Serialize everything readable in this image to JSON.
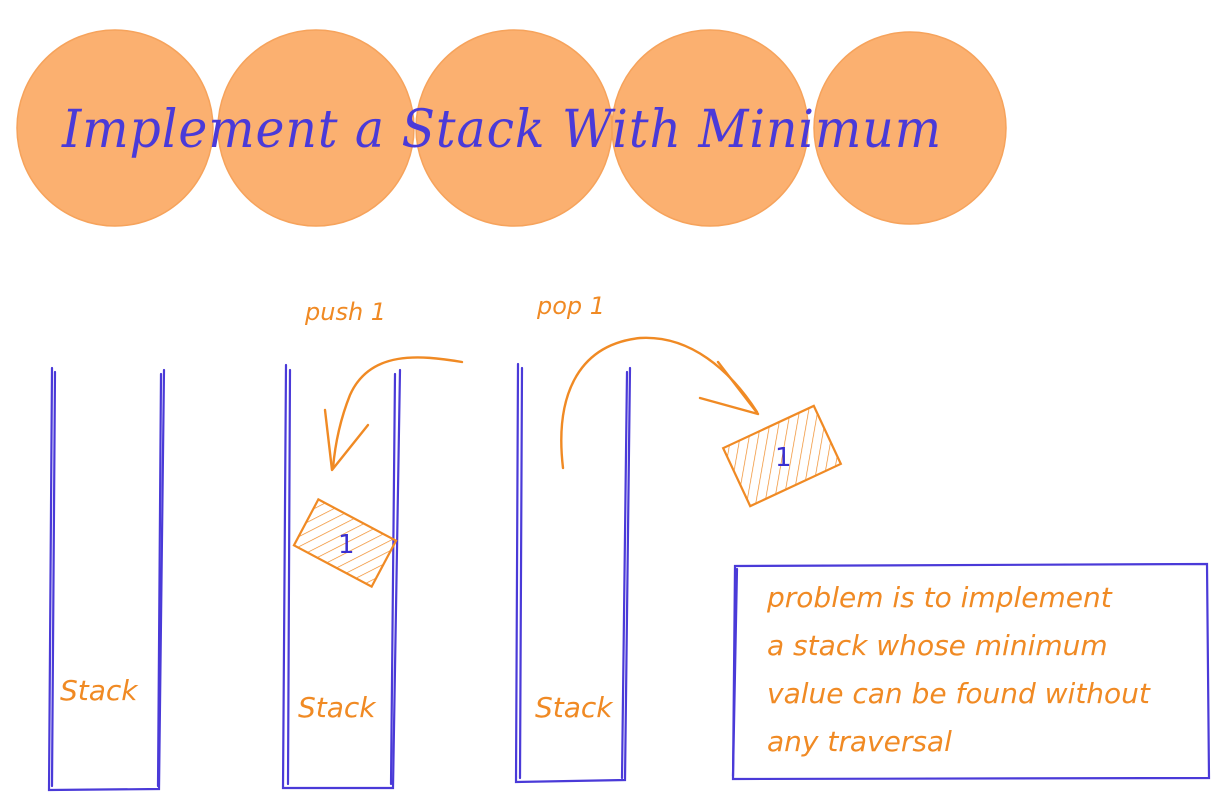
{
  "title": "Implement a Stack With Minimum",
  "colors": {
    "circle_fill": "#fbb070",
    "title_text": "#4a3ad8",
    "stack_outline": "#4a3ad8",
    "annotation": "#f08a24"
  },
  "stacks": [
    {
      "label": "Stack"
    },
    {
      "label": "Stack"
    },
    {
      "label": "Stack"
    }
  ],
  "operations": {
    "push_label": "push 1",
    "pop_label": "pop 1"
  },
  "elements": {
    "pushed_value": "1",
    "popped_value": "1"
  },
  "note": {
    "lines": [
      "problem is to implement",
      "a stack whose minimum",
      "value can be found without",
      "any traversal"
    ]
  }
}
